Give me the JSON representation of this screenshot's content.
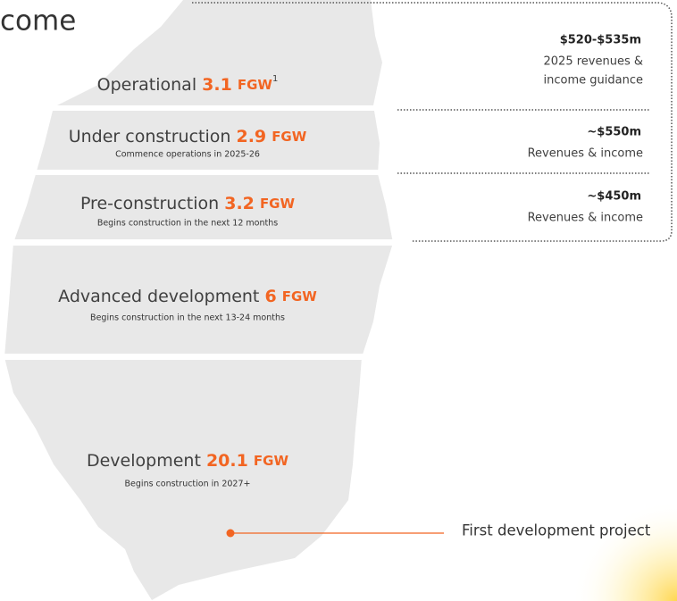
{
  "title": "come",
  "tiers": [
    {
      "label": "Operational",
      "value": "3.1",
      "unit": "FGW",
      "footnote": "1"
    },
    {
      "label": "Under construction",
      "value": "2.9",
      "unit": "FGW",
      "subtitle": "Commence operations in 2025-26"
    },
    {
      "label": "Pre-construction",
      "value": "3.2",
      "unit": "FGW",
      "subtitle": "Begins construction in the next 12 months"
    },
    {
      "label": "Advanced development",
      "value": "6",
      "unit": "FGW",
      "subtitle": "Begins construction in the next 13-24 months"
    },
    {
      "label": "Development",
      "value": "20.1",
      "unit": "FGW",
      "subtitle": "Begins construction in 2027+"
    }
  ],
  "revenues": [
    {
      "amount": "$520-$535m",
      "lines": [
        "2025 revenues &",
        "income guidance"
      ]
    },
    {
      "amount": "~$550m",
      "lines": [
        "Revenues & income"
      ]
    },
    {
      "amount": "~$450m",
      "lines": [
        "Revenues & income"
      ]
    }
  ],
  "annotation": "First development project"
}
